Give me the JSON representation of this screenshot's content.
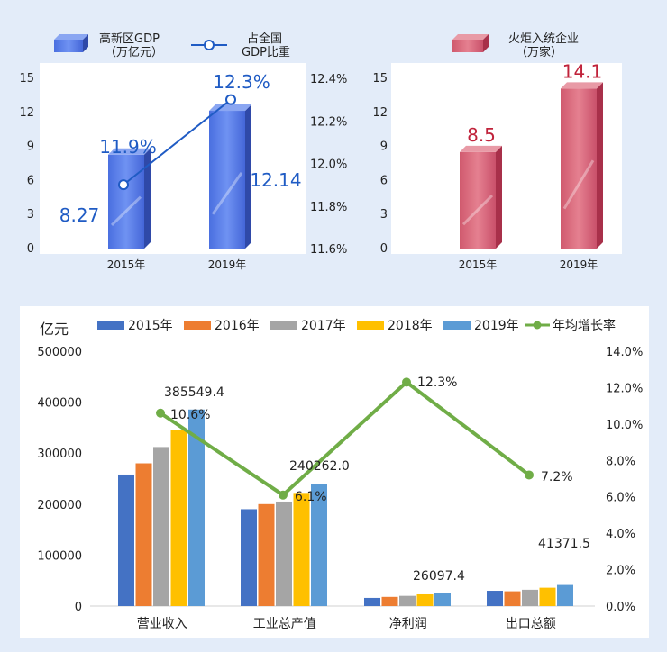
{
  "chart_data": [
    {
      "type": "bar",
      "legend": {
        "bar_label": "高新区GDP\n（万亿元）",
        "line_label": "占全国\nGDP比重"
      },
      "categories": [
        "2015年",
        "2019年"
      ],
      "series": [
        {
          "name": "高新区GDP（万亿元）",
          "values": [
            8.27,
            12.14
          ],
          "labels": [
            "8.27",
            "12.14"
          ]
        },
        {
          "name": "占全国GDP比重",
          "type": "line",
          "values": [
            11.9,
            12.3
          ],
          "labels": [
            "11.9%",
            "12.3%"
          ]
        }
      ],
      "yticks": [
        "0",
        "3",
        "6",
        "9",
        "12",
        "15"
      ],
      "y2ticks": [
        "11.6%",
        "11.8%",
        "12.0%",
        "12.2%",
        "12.4%"
      ],
      "ylim": [
        0,
        15
      ],
      "y2lim": [
        11.6,
        12.4
      ]
    },
    {
      "type": "bar",
      "legend": {
        "bar_label": "火炬入统企业\n（万家）"
      },
      "categories": [
        "2015年",
        "2019年"
      ],
      "series": [
        {
          "name": "火炬入统企业（万家）",
          "values": [
            8.5,
            14.1
          ],
          "labels": [
            "8.5",
            "14.1"
          ]
        }
      ],
      "yticks": [
        "0",
        "3",
        "6",
        "9",
        "12",
        "15"
      ],
      "ylim": [
        0,
        15
      ]
    },
    {
      "type": "bar",
      "ylabel": "亿元",
      "categories": [
        "营业收入",
        "工业总产值",
        "净利润",
        "出口总额"
      ],
      "series": [
        {
          "name": "2015年",
          "color": "#4472c4",
          "values": [
            258000,
            190000,
            16000,
            30000
          ]
        },
        {
          "name": "2016年",
          "color": "#ed7d31",
          "values": [
            280000,
            200000,
            18000,
            29000
          ]
        },
        {
          "name": "2017年",
          "color": "#a5a5a5",
          "values": [
            312000,
            205000,
            20000,
            32000
          ]
        },
        {
          "name": "2018年",
          "color": "#ffc000",
          "values": [
            346000,
            222000,
            23000,
            36000
          ]
        },
        {
          "name": "2019年",
          "color": "#5b9bd5",
          "values": [
            385549.4,
            240262.0,
            26097.4,
            41371.5
          ]
        },
        {
          "name": "年均增长率",
          "type": "line",
          "color": "#70ad47",
          "values": [
            10.6,
            6.1,
            12.3,
            7.2
          ]
        }
      ],
      "value_labels": [
        "385549.4",
        "240262.0",
        "26097.4",
        "41371.5"
      ],
      "rate_labels": [
        "10.6%",
        "6.1%",
        "12.3%",
        "7.2%"
      ],
      "yticks": [
        "0",
        "100000",
        "200000",
        "300000",
        "400000",
        "500000"
      ],
      "y2ticks": [
        "0.0%",
        "2.0%",
        "4.0%",
        "6.0%",
        "8.0%",
        "10.0%",
        "12.0%",
        "14.0%"
      ],
      "ylim": [
        0,
        500000
      ],
      "y2lim": [
        0,
        14
      ]
    }
  ]
}
